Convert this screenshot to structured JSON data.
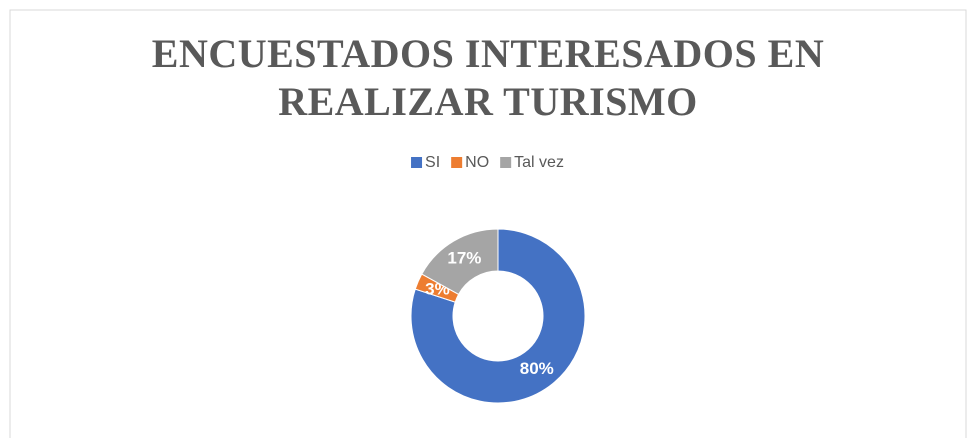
{
  "chart_data": {
    "type": "donut",
    "title": "ENCUESTADOS INTERESADOS EN REALIZAR TURISMO",
    "categories": [
      "SI",
      "NO",
      "Tal vez"
    ],
    "values": [
      80,
      3,
      17
    ],
    "value_labels": [
      "80%",
      "3%",
      "17%"
    ],
    "colors": [
      "#4472c4",
      "#ed7d31",
      "#a5a5a5"
    ],
    "legend": "top"
  }
}
